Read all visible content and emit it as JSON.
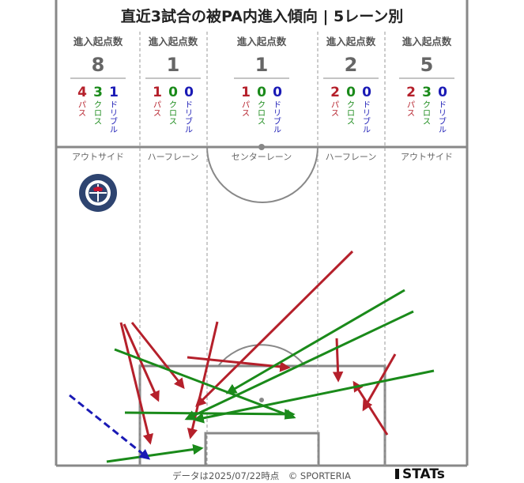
{
  "title": "直近3試合の被PA内進入傾向 | 5レーン別",
  "footer": "データは2025/07/22時点　© SPORTERIA",
  "brand": "STATs",
  "colors": {
    "pass": "#b5202b",
    "cross": "#1a8a1a",
    "dribble": "#1a1ab5",
    "line": "#888888"
  },
  "chart_data": {
    "type": "table",
    "lane_header": "進入起点数",
    "count_labels": {
      "pass": "パス",
      "cross": "クロス",
      "dribble": "ドリブル"
    },
    "lanes": [
      {
        "name": "アウトサイド",
        "total": "8",
        "pass": "4",
        "cross": "3",
        "dribble": "1"
      },
      {
        "name": "ハーフレーン",
        "total": "1",
        "pass": "1",
        "cross": "0",
        "dribble": "0"
      },
      {
        "name": "センターレーン",
        "total": "1",
        "pass": "1",
        "cross": "0",
        "dribble": "0"
      },
      {
        "name": "ハーフレーン",
        "total": "2",
        "pass": "2",
        "cross": "0",
        "dribble": "0"
      },
      {
        "name": "アウトサイド",
        "total": "5",
        "pass": "2",
        "cross": "3",
        "dribble": "0"
      }
    ]
  },
  "team_logo": {
    "text_top": "KAGOSHIMA",
    "text_bottom": "UNITED FC"
  }
}
